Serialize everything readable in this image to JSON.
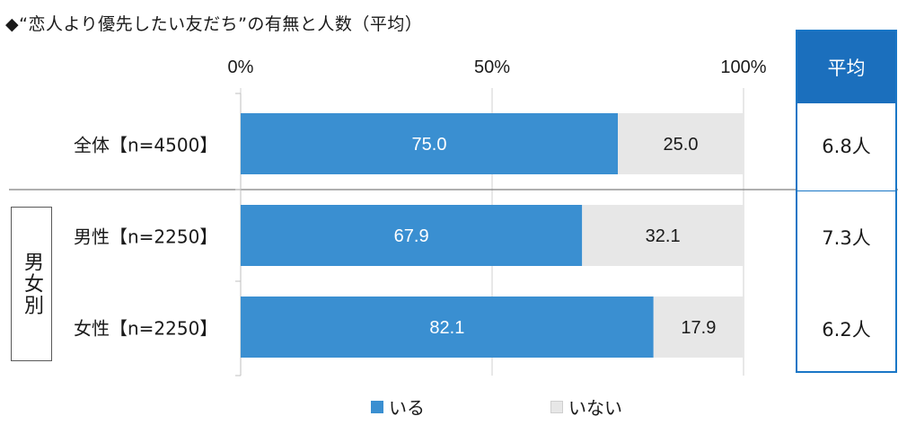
{
  "title": "◆“恋人より優先したい友だち”の有無と人数（平均）",
  "chart_data": {
    "type": "bar",
    "orientation": "horizontal",
    "stacked": true,
    "percent": true,
    "categories": [
      "全体【n=4500】",
      "男性【n=2250】",
      "女性【n=2250】"
    ],
    "series": [
      {
        "name": "いる",
        "values": [
          75.0,
          67.9,
          82.1
        ],
        "color": "#3a8fd1"
      },
      {
        "name": "いない",
        "values": [
          25.0,
          32.1,
          17.9
        ],
        "color": "#e7e7e7"
      }
    ],
    "xlim": [
      0,
      100
    ],
    "ticks": [
      "0%",
      "50%",
      "100%"
    ],
    "tick_values": [
      0,
      50,
      100
    ],
    "grid": true,
    "legend_position": "bottom",
    "group_label": "男女別"
  },
  "average": {
    "header": "平均",
    "values": [
      "6.8人",
      "7.3人",
      "6.2人"
    ]
  },
  "colors": {
    "yes": "#3a8fd1",
    "no": "#e7e7e7",
    "header": "#1b6fbd",
    "border": "#1976c6"
  }
}
